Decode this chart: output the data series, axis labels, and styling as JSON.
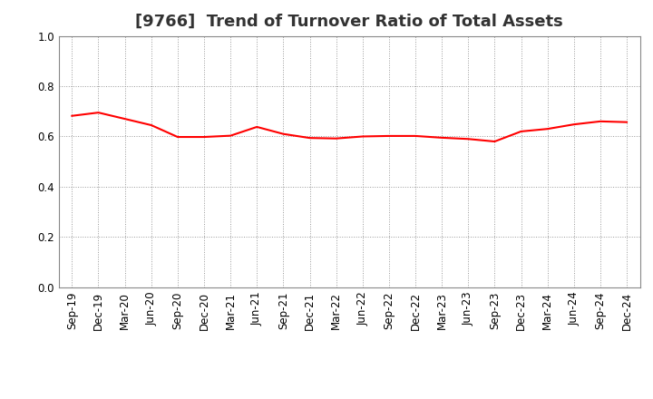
{
  "title": "[9766]  Trend of Turnover Ratio of Total Assets",
  "x_labels": [
    "Sep-19",
    "Dec-19",
    "Mar-20",
    "Jun-20",
    "Sep-20",
    "Dec-20",
    "Mar-21",
    "Jun-21",
    "Sep-21",
    "Dec-21",
    "Mar-22",
    "Jun-22",
    "Sep-22",
    "Dec-22",
    "Mar-23",
    "Jun-23",
    "Sep-23",
    "Dec-23",
    "Mar-24",
    "Jun-24",
    "Sep-24",
    "Dec-24"
  ],
  "values": [
    0.682,
    0.695,
    0.67,
    0.645,
    0.598,
    0.598,
    0.603,
    0.638,
    0.61,
    0.594,
    0.592,
    0.6,
    0.602,
    0.602,
    0.595,
    0.59,
    0.58,
    0.62,
    0.63,
    0.648,
    0.66,
    0.657
  ],
  "ylim": [
    0.0,
    1.0
  ],
  "yticks": [
    0.0,
    0.2,
    0.4,
    0.6,
    0.8,
    1.0
  ],
  "line_color": "#FF0000",
  "line_width": 1.5,
  "background_color": "#FFFFFF",
  "grid_color": "#999999",
  "title_fontsize": 13,
  "tick_fontsize": 8.5,
  "title_color": "#333333"
}
